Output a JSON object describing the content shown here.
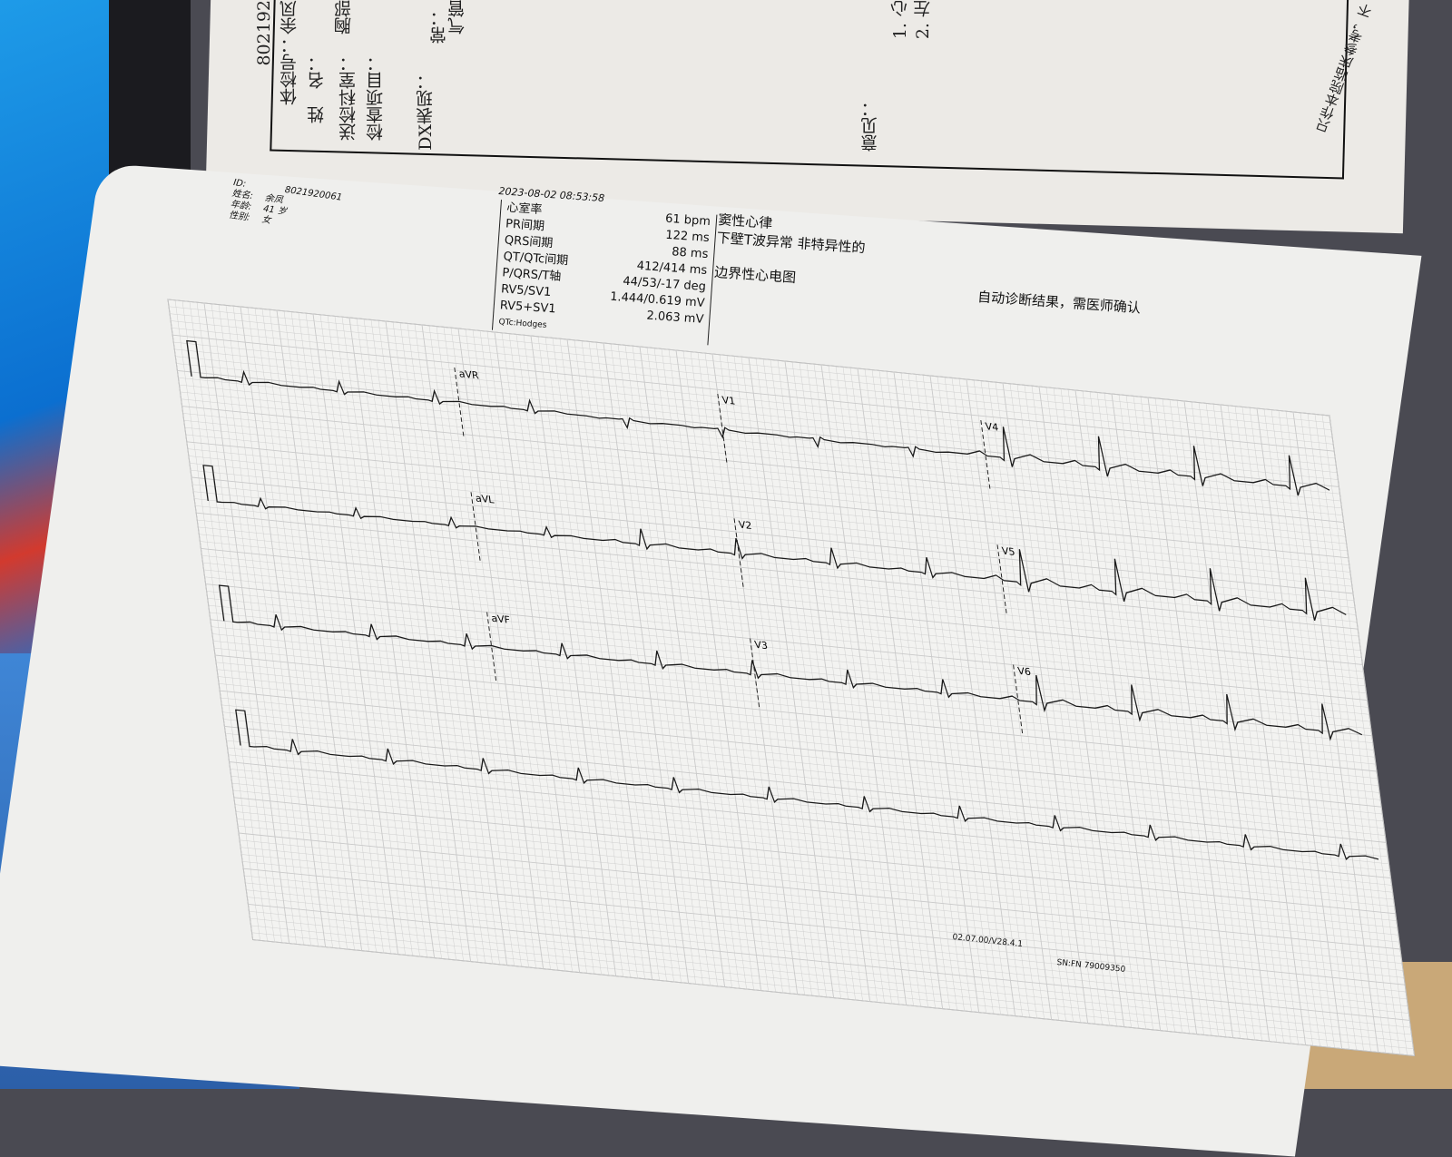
{
  "top_sheet": {
    "labels": [
      "体检号：",
      "姓　名：",
      "送检科室：",
      "检查项目：",
      "DX表现：",
      "意见："
    ],
    "exam_id_partial": "802192",
    "name_partial": "余凤",
    "dept_partial": "胸部",
    "findings_partial": [
      "常：",
      "气管"
    ],
    "opinion_partial": [
      "1. 心",
      "2. 左"
    ],
    "disclaimer": "只作本院临床参考，不"
  },
  "patient": {
    "id_label": "ID:",
    "id": "8021920061",
    "name_label": "姓名:",
    "name": "余凤",
    "age_label": "年龄:",
    "age": "41 岁",
    "sex_label": "性别:",
    "sex": "女"
  },
  "timestamp": "2023-08-02 08:53:58",
  "measurements": [
    {
      "label": "心室率",
      "value": "61 bpm"
    },
    {
      "label": "PR间期",
      "value": "122 ms"
    },
    {
      "label": "QRS间期",
      "value": "88 ms"
    },
    {
      "label": "QT/QTc间期",
      "value": "412/414 ms"
    },
    {
      "label": "P/QRS/T轴",
      "value": "44/53/-17 deg"
    },
    {
      "label": "RV5/SV1",
      "value": "1.444/0.619 mV"
    },
    {
      "label": "RV5+SV1",
      "value": "2.063 mV"
    },
    {
      "label": "QTc:Hodges",
      "value": ""
    }
  ],
  "diagnosis": [
    "窦性心律",
    "下壁T波异常 非特异性的",
    "边界性心电图"
  ],
  "auto_note": "自动诊断结果，需医师确认",
  "leads": [
    [
      "aVR",
      "V1",
      "V4"
    ],
    [
      "aVL",
      "V2",
      "V5"
    ],
    [
      "aVF",
      "V3",
      "V6"
    ]
  ],
  "footer": {
    "version": "02.07.00/V28.4.1",
    "serial": "SN:FN 79009350"
  },
  "colors": {
    "grid": "#c9c9c9",
    "trace": "#1a1a1a",
    "paper": "#efefed"
  }
}
